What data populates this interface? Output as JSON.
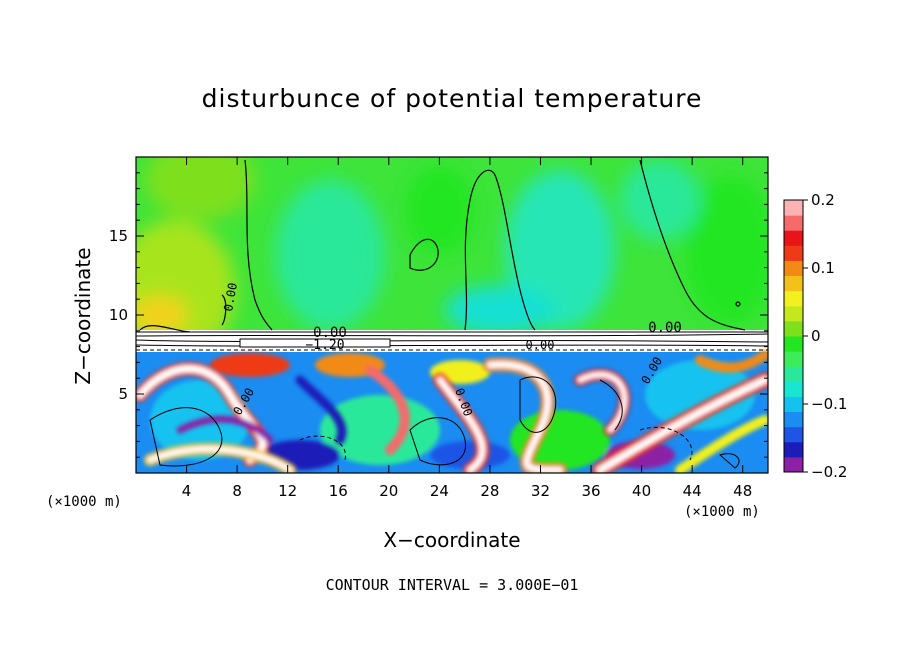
{
  "chart_data": {
    "type": "heatmap",
    "title": "disturbunce of potential temperature",
    "xlabel": "X−coordinate",
    "ylabel": "Z−coordinate",
    "x_unit": "(×1000 m)",
    "x_unit_right": "(×1000 m)",
    "xlim": [
      0,
      50
    ],
    "ylim": [
      0,
      20
    ],
    "x_ticks": [
      4,
      8,
      12,
      16,
      20,
      24,
      28,
      32,
      36,
      40,
      44,
      48
    ],
    "y_ticks": [
      5,
      10,
      15
    ],
    "colorbar": {
      "min": -0.2,
      "max": 0.2,
      "tick_values": [
        0.2,
        0.1,
        0,
        -0.1,
        -0.2
      ],
      "tick_labels": [
        "0.2",
        "0.1",
        "0",
        "−0.1",
        "−0.2"
      ],
      "colors": [
        "#8b22a6",
        "#1c1cb8",
        "#1f55e6",
        "#1a8cf2",
        "#14c2f0",
        "#19e6d2",
        "#2ae89a",
        "#3cec5a",
        "#22e622",
        "#7ee01a",
        "#c4e81c",
        "#f2f01e",
        "#f2c21a",
        "#f28a16",
        "#ee3a16",
        "#e81418",
        "#f66a6a",
        "#fbb2b2"
      ]
    },
    "contour_labels": [
      "0.00",
      "0.00",
      "0.00",
      "0.00",
      "0.00",
      "−1.20",
      "0.00",
      "0.00"
    ],
    "footer": "CONTOUR INTERVAL = 3.000E−01",
    "grid": false
  }
}
